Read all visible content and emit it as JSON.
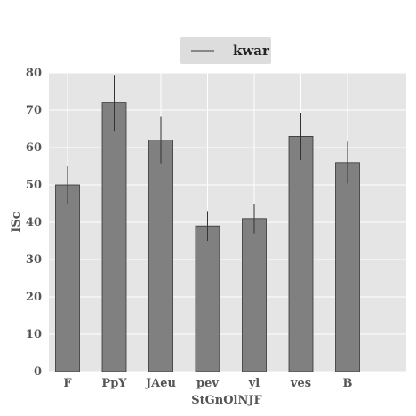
{
  "chart_data": {
    "type": "bar",
    "title": "",
    "xlabel": "StGnOlNJF",
    "ylabel": "ISc",
    "categories": [
      "F",
      "PpY",
      "JAeu",
      "pev",
      "yl",
      "ves",
      "B"
    ],
    "series": [
      {
        "name": "kwar",
        "values": [
          50,
          72,
          62,
          39,
          41,
          63,
          56
        ],
        "errors": [
          5,
          7.5,
          6.2,
          4,
          4,
          6.3,
          5.6
        ]
      }
    ],
    "ylim": [
      0,
      80
    ],
    "yticks": [
      0,
      10,
      20,
      30,
      40,
      50,
      60,
      70,
      80
    ],
    "grid": true,
    "legend": "top-center",
    "colors": {
      "bar": "#808080",
      "bar_edge": "#333333",
      "error": "#333333",
      "background": "#e5e5e5",
      "grid": "#ffffff",
      "legend_bg": "#dddddd"
    }
  }
}
